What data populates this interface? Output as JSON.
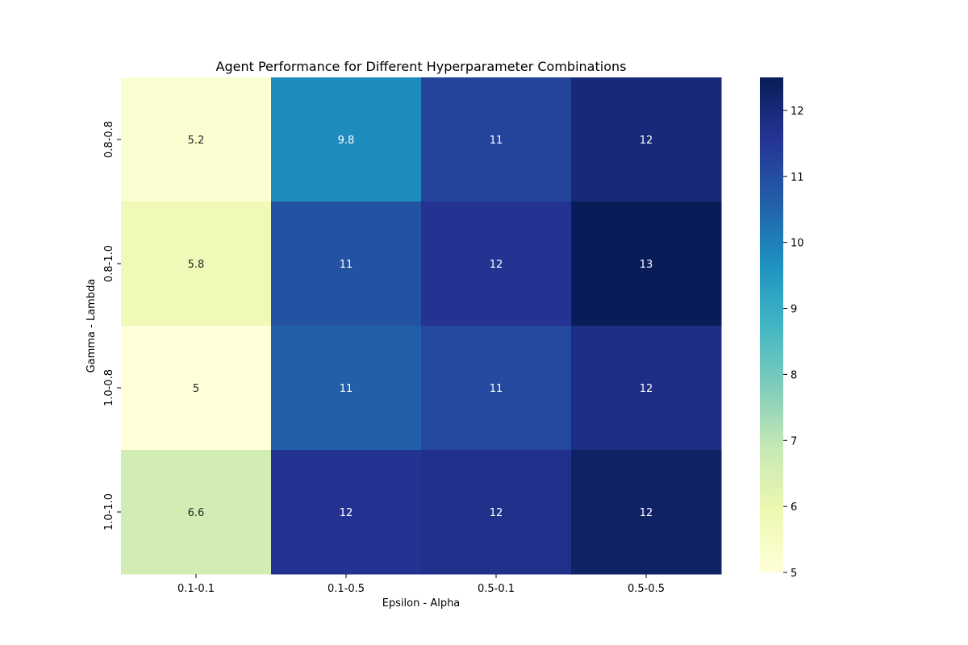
{
  "chart_data": {
    "type": "heatmap",
    "title": "Agent Performance for Different Hyperparameter Combinations",
    "xlabel": "Epsilon - Alpha",
    "ylabel": "Gamma - Lambda",
    "x_categories": [
      "0.1-0.1",
      "0.1-0.5",
      "0.5-0.1",
      "0.5-0.5"
    ],
    "y_categories": [
      "0.8-0.8",
      "0.8-1.0",
      "1.0-0.8",
      "1.0-1.0"
    ],
    "values": [
      [
        5.2,
        9.8,
        11.2,
        12.0
      ],
      [
        5.8,
        10.9,
        11.6,
        12.5
      ],
      [
        5.0,
        10.6,
        11.1,
        11.8
      ],
      [
        6.6,
        11.6,
        11.7,
        12.3
      ]
    ],
    "labels": [
      [
        "5.2",
        "9.8",
        "11",
        "12"
      ],
      [
        "5.8",
        "11",
        "12",
        "13"
      ],
      [
        "5",
        "11",
        "11",
        "12"
      ],
      [
        "6.6",
        "12",
        "12",
        "12"
      ]
    ],
    "colormap": "YlGnBu",
    "colorbar": {
      "vmin": 5,
      "vmax": 12.5,
      "ticks": [
        "5",
        "6",
        "7",
        "8",
        "9",
        "10",
        "11",
        "12"
      ]
    }
  }
}
